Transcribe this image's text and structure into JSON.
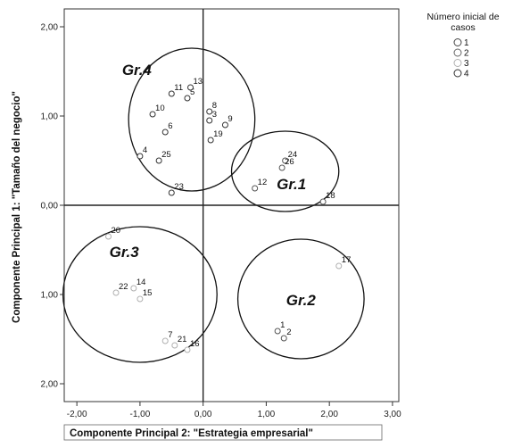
{
  "chart_data": {
    "type": "scatter",
    "xlabel": "Componente Principal 2: \"Estrategia empresarial\"",
    "ylabel": "Componente Principal 1: \"Tamaño del negocio\"",
    "xlim": [
      -2.2,
      3.1
    ],
    "ylim": [
      -2.2,
      2.2
    ],
    "x_ticks": [
      "-2,00",
      "-1,00",
      "0,00",
      "1,00",
      "2,00",
      "3,00"
    ],
    "y_ticks": [
      "2,00",
      "1,00",
      "0,00",
      "1,00",
      "2,00"
    ],
    "grid": false,
    "legend": {
      "title": "Número inicial de casos",
      "placement": "top-right",
      "entries": [
        "1",
        "2",
        "3",
        "4"
      ]
    },
    "groups": [
      {
        "label": "Gr.1",
        "center": [
          1.3,
          0.38
        ],
        "rx": 0.85,
        "ry": 0.45,
        "label_pos": [
          1.4,
          0.18
        ]
      },
      {
        "label": "Gr.2",
        "center": [
          1.55,
          -1.05
        ],
        "rx": 1.0,
        "ry": 0.67,
        "label_pos": [
          1.55,
          -1.12
        ]
      },
      {
        "label": "Gr.3",
        "center": [
          -1.0,
          -1.0
        ],
        "rx": 1.22,
        "ry": 0.76,
        "label_pos": [
          -1.25,
          -0.58
        ]
      },
      {
        "label": "Gr.4",
        "center": [
          -0.18,
          0.96
        ],
        "rx": 1.0,
        "ry": 0.8,
        "label_pos": [
          -1.05,
          1.46
        ]
      }
    ],
    "points": [
      {
        "label": "1",
        "x": 1.18,
        "y": -1.41,
        "cluster": "1"
      },
      {
        "label": "2",
        "x": 1.28,
        "y": -1.49,
        "cluster": "1"
      },
      {
        "label": "3",
        "x": 0.1,
        "y": 0.95,
        "cluster": "4"
      },
      {
        "label": "4",
        "x": -1.0,
        "y": 0.55,
        "cluster": "4"
      },
      {
        "label": "5",
        "x": -0.25,
        "y": 1.2,
        "cluster": "4"
      },
      {
        "label": "6",
        "x": -0.6,
        "y": 0.82,
        "cluster": "4"
      },
      {
        "label": "7",
        "x": -0.6,
        "y": -1.52,
        "cluster": "3"
      },
      {
        "label": "8",
        "x": 0.1,
        "y": 1.05,
        "cluster": "4"
      },
      {
        "label": "9",
        "x": 0.35,
        "y": 0.9,
        "cluster": "4"
      },
      {
        "label": "10",
        "x": -0.8,
        "y": 1.02,
        "cluster": "4"
      },
      {
        "label": "11",
        "x": -0.5,
        "y": 1.25,
        "cluster": "4"
      },
      {
        "label": "12",
        "x": 0.82,
        "y": 0.19,
        "cluster": "2"
      },
      {
        "label": "13",
        "x": -0.2,
        "y": 1.32,
        "cluster": "4"
      },
      {
        "label": "14",
        "x": -1.1,
        "y": -0.93,
        "cluster": "3"
      },
      {
        "label": "15",
        "x": -1.0,
        "y": -1.05,
        "cluster": "3"
      },
      {
        "label": "16",
        "x": -0.25,
        "y": -1.62,
        "cluster": "3"
      },
      {
        "label": "17",
        "x": 2.15,
        "y": -0.68,
        "cluster": "3"
      },
      {
        "label": "18",
        "x": 1.9,
        "y": 0.04,
        "cluster": "2"
      },
      {
        "label": "19",
        "x": 0.12,
        "y": 0.73,
        "cluster": "4"
      },
      {
        "label": "20",
        "x": -1.5,
        "y": -0.35,
        "cluster": "3"
      },
      {
        "label": "21",
        "x": -0.45,
        "y": -1.57,
        "cluster": "3"
      },
      {
        "label": "22",
        "x": -1.38,
        "y": -0.98,
        "cluster": "3"
      },
      {
        "label": "23",
        "x": -0.5,
        "y": 0.14,
        "cluster": "4"
      },
      {
        "label": "24",
        "x": 1.3,
        "y": 0.5,
        "cluster": "2"
      },
      {
        "label": "25",
        "x": -0.7,
        "y": 0.5,
        "cluster": "4"
      },
      {
        "label": "26",
        "x": 1.25,
        "y": 0.42,
        "cluster": "2"
      }
    ],
    "cluster_colors": {
      "1": "#555555",
      "2": "#555555",
      "3": "#b0b0b0",
      "4": "#333333"
    }
  }
}
